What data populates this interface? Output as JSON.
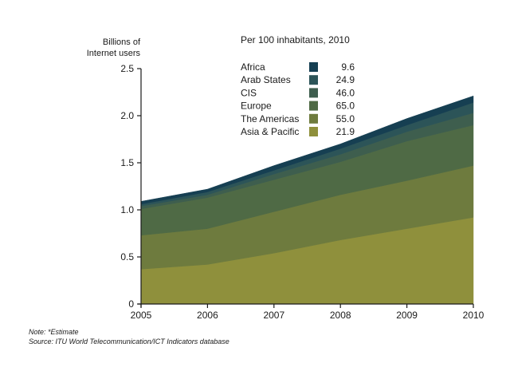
{
  "chart_data": {
    "type": "area",
    "stacked": true,
    "ylabel_lines": [
      "Billions of",
      "Internet users"
    ],
    "xlabel": "",
    "x": [
      "2005",
      "2006",
      "2007",
      "2008",
      "2009",
      "2010"
    ],
    "ylim": [
      0,
      2.5
    ],
    "yticks": [
      "0",
      "0.5",
      "1.0",
      "1.5",
      "2.0",
      "2.5"
    ],
    "ytick_values": [
      0,
      0.5,
      1.0,
      1.5,
      2.0,
      2.5
    ],
    "grid": false,
    "legend": {
      "title": "Per 100 inhabitants, 2010",
      "placement": "top-center"
    },
    "series": [
      {
        "name": "Asia & Pacific",
        "per100": "21.9",
        "color": "#8f903c",
        "values": [
          0.37,
          0.42,
          0.54,
          0.68,
          0.8,
          0.92
        ]
      },
      {
        "name": "The Americas",
        "per100": "55.0",
        "color": "#6e7b3e",
        "values": [
          0.36,
          0.38,
          0.44,
          0.48,
          0.51,
          0.55
        ]
      },
      {
        "name": "Europe",
        "per100": "65.0",
        "color": "#4f6a45",
        "values": [
          0.28,
          0.33,
          0.34,
          0.35,
          0.42,
          0.43
        ]
      },
      {
        "name": "CIS",
        "per100": "46.0",
        "color": "#3e5e4e",
        "values": [
          0.03,
          0.03,
          0.06,
          0.08,
          0.1,
          0.13
        ]
      },
      {
        "name": "Arab States",
        "per100": "24.9",
        "color": "#2c5458",
        "values": [
          0.02,
          0.03,
          0.04,
          0.06,
          0.07,
          0.11
        ]
      },
      {
        "name": "Africa",
        "per100": "9.6",
        "color": "#163f52",
        "values": [
          0.03,
          0.03,
          0.05,
          0.05,
          0.07,
          0.07
        ]
      }
    ]
  },
  "footnotes": {
    "note": "Note: *Estimate",
    "source": "Source: ITU World Telecommunication/ICT Indicators database"
  }
}
